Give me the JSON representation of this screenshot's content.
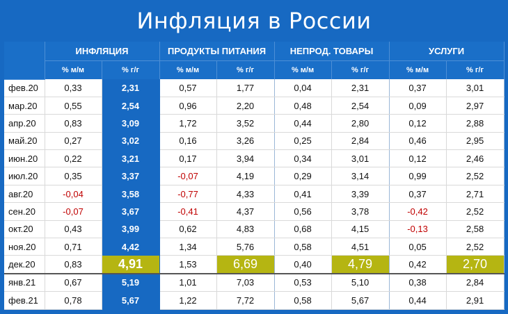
{
  "title": "Инфляция в России",
  "colors": {
    "background": "#1769c2",
    "header": "#1a6fc8",
    "highlight_column": "#1769c2",
    "peak": "#b5b512",
    "negative": "#c00000"
  },
  "groups": [
    "ИНФЛЯЦИЯ",
    "ПРОДУКТЫ ПИТАНИЯ",
    "НЕПРОД. ТОВАРЫ",
    "УСЛУГИ"
  ],
  "subheaders": [
    "% м/м",
    "% г/г"
  ],
  "chart_data": {
    "type": "table",
    "title": "Инфляция в России",
    "columns": [
      "% м/м",
      "% г/г",
      "% м/м",
      "% г/г",
      "% м/м",
      "% г/г",
      "% м/м",
      "% г/г"
    ],
    "rows": [
      {
        "month": "фев.20",
        "values": [
          "0,33",
          "2,31",
          "0,57",
          "1,77",
          "0,04",
          "2,31",
          "0,37",
          "3,01"
        ]
      },
      {
        "month": "мар.20",
        "values": [
          "0,55",
          "2,54",
          "0,96",
          "2,20",
          "0,48",
          "2,54",
          "0,09",
          "2,97"
        ]
      },
      {
        "month": "апр.20",
        "values": [
          "0,83",
          "3,09",
          "1,72",
          "3,52",
          "0,44",
          "2,80",
          "0,12",
          "2,88"
        ]
      },
      {
        "month": "май.20",
        "values": [
          "0,27",
          "3,02",
          "0,16",
          "3,26",
          "0,25",
          "2,84",
          "0,46",
          "2,95"
        ]
      },
      {
        "month": "июн.20",
        "values": [
          "0,22",
          "3,21",
          "0,17",
          "3,94",
          "0,34",
          "3,01",
          "0,12",
          "2,46"
        ]
      },
      {
        "month": "июл.20",
        "values": [
          "0,35",
          "3,37",
          "-0,07",
          "4,19",
          "0,29",
          "3,14",
          "0,99",
          "2,52"
        ]
      },
      {
        "month": "авг.20",
        "values": [
          "-0,04",
          "3,58",
          "-0,77",
          "4,33",
          "0,41",
          "3,39",
          "0,37",
          "2,71"
        ]
      },
      {
        "month": "сен.20",
        "values": [
          "-0,07",
          "3,67",
          "-0,41",
          "4,37",
          "0,56",
          "3,78",
          "-0,42",
          "2,52"
        ]
      },
      {
        "month": "окт.20",
        "values": [
          "0,43",
          "3,99",
          "0,62",
          "4,83",
          "0,68",
          "4,15",
          "-0,13",
          "2,58"
        ]
      },
      {
        "month": "ноя.20",
        "values": [
          "0,71",
          "4,42",
          "1,34",
          "5,76",
          "0,58",
          "4,51",
          "0,05",
          "2,52"
        ]
      },
      {
        "month": "дек.20",
        "values": [
          "0,83",
          "4,91",
          "1,53",
          "6,69",
          "0,40",
          "4,79",
          "0,42",
          "2,70"
        ]
      },
      {
        "month": "янв.21",
        "values": [
          "0,67",
          "5,19",
          "1,01",
          "7,03",
          "0,53",
          "5,10",
          "0,38",
          "2,84"
        ]
      },
      {
        "month": "фев.21",
        "values": [
          "0,78",
          "5,67",
          "1,22",
          "7,72",
          "0,58",
          "5,67",
          "0,44",
          "2,91"
        ]
      }
    ],
    "highlighted_row": "дек.20"
  }
}
